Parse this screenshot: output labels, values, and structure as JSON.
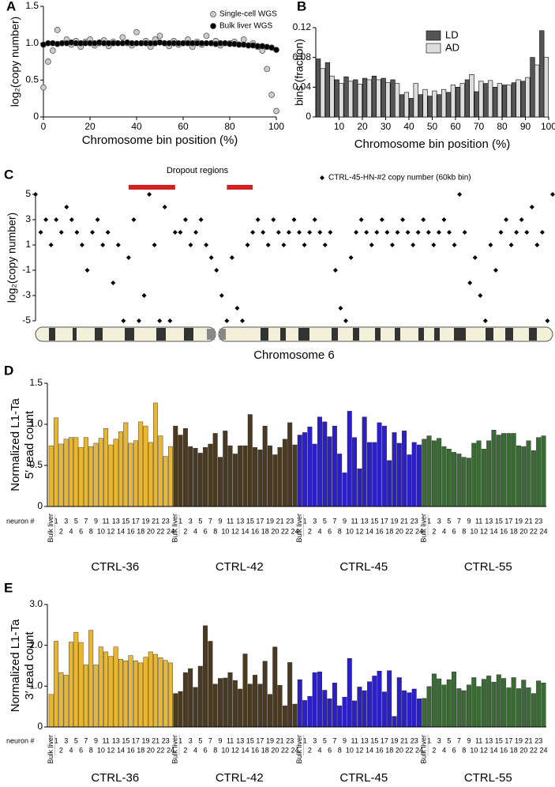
{
  "chart_data": [
    {
      "label": "A",
      "type": "scatter",
      "xlabel": "Chromosome bin position (%)",
      "ylabel": "log₂(copy number)",
      "xlim": [
        0,
        100
      ],
      "xticks": [
        0,
        20,
        40,
        60,
        80,
        100
      ],
      "ylim": [
        0,
        1.5
      ],
      "yticks": [
        0,
        0.5,
        {
          "value": 1,
          "label": "1.0"
        },
        1.5
      ],
      "legend": "upper right",
      "x": [
        0,
        2,
        4,
        6,
        8,
        10,
        12,
        14,
        16,
        18,
        20,
        22,
        24,
        26,
        28,
        30,
        32,
        34,
        36,
        38,
        40,
        42,
        44,
        46,
        48,
        50,
        52,
        54,
        56,
        58,
        60,
        62,
        64,
        66,
        68,
        70,
        72,
        74,
        76,
        78,
        80,
        82,
        84,
        86,
        88,
        90,
        92,
        94,
        96,
        98,
        100
      ],
      "series": [
        {
          "name": "Single-cell WGS",
          "color": "#cccccc",
          "marker": "circle",
          "values": [
            0.4,
            0.75,
            0.9,
            1.18,
            1.0,
            1.05,
            0.98,
            1.03,
            0.95,
            1.02,
            1.05,
            0.97,
            1.0,
            1.04,
            0.96,
            1.02,
            1.0,
            1.08,
            1.0,
            0.97,
            1.15,
            1.0,
            1.03,
            0.95,
            1.05,
            1.1,
            1.0,
            0.96,
            1.03,
            0.98,
            1.0,
            1.05,
            0.95,
            1.02,
            0.98,
            1.1,
            1.0,
            1.03,
            0.97,
            1.0,
            1.0,
            1.02,
            0.98,
            1.05,
            0.97,
            1.0,
            0.95,
            0.9,
            0.65,
            0.3,
            0.08
          ]
        },
        {
          "name": "Bulk liver WGS",
          "color": "#000000",
          "marker": "circle",
          "values": [
            0.98,
            1.0,
            1.0,
            0.99,
            1.0,
            1.0,
            1.01,
            1.0,
            1.0,
            1.0,
            1.0,
            1.0,
            1.01,
            1.0,
            1.0,
            1.0,
            1.0,
            1.0,
            1.01,
            1.0,
            1.0,
            1.0,
            1.0,
            1.0,
            1.0,
            1.01,
            1.0,
            1.0,
            1.0,
            1.0,
            1.0,
            1.0,
            1.0,
            1.0,
            1.0,
            1.0,
            1.0,
            0.99,
            1.0,
            1.0,
            0.99,
            0.99,
            0.98,
            0.98,
            0.97,
            0.97,
            0.96,
            0.96,
            0.95,
            0.94,
            0.91
          ]
        }
      ]
    },
    {
      "label": "B",
      "type": "bar",
      "xlabel": "Chromosome bin position (%)",
      "ylabel": "bins (fraction)",
      "xlim": [
        0,
        100
      ],
      "xticks": [
        10,
        20,
        30,
        40,
        50,
        60,
        70,
        80,
        90,
        100
      ],
      "ylim": [
        0,
        0.12
      ],
      "yticks": [
        0,
        0.04,
        0.08,
        0.12
      ],
      "legend": "upper center",
      "x": [
        2,
        6,
        10,
        14,
        18,
        22,
        26,
        30,
        34,
        38,
        42,
        46,
        50,
        54,
        58,
        62,
        66,
        70,
        74,
        78,
        82,
        86,
        90,
        94,
        98
      ],
      "series": [
        {
          "name": "LD",
          "color": "#555555",
          "values": [
            0.078,
            0.073,
            0.05,
            0.054,
            0.05,
            0.052,
            0.055,
            0.052,
            0.05,
            0.03,
            0.025,
            0.03,
            0.028,
            0.03,
            0.033,
            0.04,
            0.05,
            0.034,
            0.045,
            0.04,
            0.043,
            0.046,
            0.048,
            0.08,
            0.116
          ]
        },
        {
          "name": "AD",
          "color": "#dddddd",
          "values": [
            0.065,
            0.055,
            0.045,
            0.048,
            0.044,
            0.05,
            0.05,
            0.046,
            0.045,
            0.033,
            0.045,
            0.037,
            0.035,
            0.037,
            0.043,
            0.045,
            0.057,
            0.048,
            0.049,
            0.045,
            0.043,
            0.05,
            0.053,
            0.07,
            0.08
          ]
        }
      ]
    },
    {
      "label": "C",
      "type": "scatter",
      "xlabel": "Chromosome 6",
      "ylabel": "log₂(copy number)",
      "xlim": [
        0,
        100
      ],
      "ylim": [
        -5,
        5
      ],
      "yticks": [
        -5,
        -3,
        -1,
        1,
        3,
        5
      ],
      "legend": "upper center",
      "annotation": "Dropout regions",
      "annotation_color": "#d42020",
      "dropout_regions": [
        [
          18,
          27
        ],
        [
          37,
          42
        ]
      ],
      "x": [
        0,
        1,
        2,
        3,
        4,
        5,
        6,
        7,
        8,
        9,
        10,
        11,
        12,
        13,
        14,
        15,
        16,
        17,
        18,
        19,
        20,
        21,
        22,
        23,
        24,
        25,
        26,
        27,
        28,
        29,
        30,
        31,
        32,
        33,
        34,
        35,
        36,
        37,
        38,
        39,
        40,
        41,
        42,
        43,
        44,
        45,
        46,
        47,
        48,
        49,
        50,
        51,
        52,
        53,
        54,
        55,
        56,
        57,
        58,
        59,
        60,
        61,
        62,
        63,
        64,
        65,
        66,
        67,
        68,
        69,
        70,
        71,
        72,
        73,
        74,
        75,
        76,
        77,
        78,
        79,
        80,
        81,
        82,
        83,
        84,
        85,
        86,
        87,
        88,
        89,
        90,
        91,
        92,
        93,
        94,
        95,
        96,
        97,
        98,
        99,
        100
      ],
      "series": [
        {
          "name": "CTRL-45-HN-#2 copy number (60kb bin)",
          "color": "#000000",
          "marker": "diamond",
          "values": [
            5,
            2,
            3,
            1,
            3,
            2,
            4,
            3,
            2,
            1,
            -1,
            2,
            3,
            1,
            2,
            -2,
            1,
            -5,
            0,
            3,
            -5,
            -3,
            5,
            1,
            -5,
            4,
            -5,
            2,
            2,
            3,
            1,
            2,
            3,
            1,
            0,
            -1,
            -3,
            -5,
            0,
            -4,
            -5,
            1,
            2,
            3,
            2,
            1,
            3,
            2,
            1,
            2,
            3,
            2,
            1,
            2,
            3,
            2,
            1,
            2,
            -1,
            -4,
            -5,
            0,
            2,
            3,
            2,
            1,
            2,
            3,
            2,
            1,
            2,
            3,
            2,
            1,
            2,
            3,
            2,
            1,
            2,
            3,
            2,
            1,
            5,
            2,
            -2,
            0,
            -3,
            -5,
            1,
            -1,
            2,
            3,
            1,
            2,
            3,
            2,
            4,
            1,
            2,
            -5,
            5
          ]
        }
      ]
    },
    {
      "label": "D",
      "type": "bar",
      "ylabel": [
        "Normalized L1-Ta",
        "5′ read count"
      ],
      "ylim": [
        0,
        1.5
      ],
      "yticks": [
        0,
        0.5,
        {
          "value": 1,
          "label": "1.0"
        },
        1.5
      ],
      "x_prefix": "neuron #",
      "categories": [
        "Bulk liver",
        "1",
        "2",
        "3",
        "4",
        "5",
        "6",
        "7",
        "8",
        "9",
        "10",
        "11",
        "12",
        "13",
        "14",
        "15",
        "16",
        "17",
        "18",
        "19",
        "20",
        "21",
        "22",
        "23",
        "24"
      ],
      "groups": [
        {
          "name": "CTRL-36",
          "color": "#e8b630",
          "values": [
            0.74,
            1.08,
            0.76,
            0.82,
            0.84,
            0.84,
            0.72,
            0.84,
            0.73,
            0.77,
            0.83,
            0.95,
            0.75,
            0.82,
            0.91,
            1.02,
            0.77,
            0.8,
            1.03,
            0.98,
            0.78,
            1.26,
            0.86,
            0.61,
            0.73
          ]
        },
        {
          "name": "CTRL-42",
          "color": "#4a3a22",
          "values": [
            0.98,
            0.87,
            0.95,
            0.73,
            0.71,
            0.65,
            0.72,
            0.76,
            0.89,
            0.6,
            0.92,
            0.74,
            0.64,
            0.74,
            0.74,
            1.12,
            0.72,
            0.69,
            0.98,
            0.74,
            0.63,
            0.72,
            0.82,
            1.02,
            0.75
          ]
        },
        {
          "name": "CTRL-45",
          "color": "#2a1fc8",
          "values": [
            0.87,
            0.9,
            0.97,
            0.76,
            1.09,
            1.03,
            0.85,
            0.98,
            0.64,
            0.41,
            1.16,
            0.84,
            0.46,
            1.09,
            0.78,
            0.78,
            1.02,
            0.98,
            0.56,
            0.9,
            0.77,
            0.92,
            0.63,
            0.78,
            0.75
          ]
        },
        {
          "name": "CTRL-55",
          "color": "#3b6b35",
          "values": [
            0.82,
            0.86,
            0.8,
            0.83,
            0.73,
            0.7,
            0.66,
            0.64,
            0.6,
            0.59,
            0.77,
            0.8,
            0.7,
            0.8,
            0.93,
            0.87,
            0.89,
            0.89,
            0.89,
            0.74,
            0.73,
            0.8,
            0.68,
            0.84,
            0.86
          ]
        }
      ]
    },
    {
      "label": "E",
      "type": "bar",
      "ylabel": [
        "Normalized L1-Ta",
        "3′ read count"
      ],
      "ylim": [
        0,
        3
      ],
      "yticks": [
        0,
        {
          "value": 1,
          "label": "1.0"
        },
        {
          "value": 2,
          "label": "2.0"
        },
        {
          "value": 3,
          "label": "3.0"
        }
      ],
      "x_prefix": "neuron #",
      "categories": [
        "Bulk liver",
        "1",
        "2",
        "3",
        "4",
        "5",
        "6",
        "7",
        "8",
        "9",
        "10",
        "11",
        "12",
        "13",
        "14",
        "15",
        "16",
        "17",
        "18",
        "19",
        "20",
        "21",
        "22",
        "23",
        "24"
      ],
      "groups": [
        {
          "name": "CTRL-36",
          "color": "#e8b630",
          "values": [
            0.8,
            2.1,
            1.33,
            1.27,
            2.08,
            2.32,
            2.07,
            1.52,
            2.37,
            1.52,
            1.96,
            1.84,
            1.73,
            1.96,
            1.66,
            1.62,
            1.75,
            1.62,
            1.57,
            1.71,
            1.84,
            1.78,
            1.7,
            1.63,
            1.57
          ]
        },
        {
          "name": "CTRL-42",
          "color": "#4a3a22",
          "values": [
            0.82,
            0.87,
            1.33,
            1.43,
            0.97,
            1.49,
            2.48,
            2.1,
            1.05,
            1.19,
            1.2,
            1.33,
            1.14,
            0.93,
            1.79,
            1.05,
            1.27,
            1.05,
            1.61,
            0.8,
            1.96,
            1.02,
            0.52,
            1.58,
            0.56
          ]
        },
        {
          "name": "CTRL-45",
          "color": "#2a1fc8",
          "values": [
            1.16,
            0.65,
            0.75,
            1.33,
            1.35,
            0.9,
            0.69,
            1.08,
            0.52,
            0.73,
            1.68,
            0.64,
            0.98,
            0.89,
            1.11,
            1.25,
            1.37,
            0.86,
            1.38,
            0.26,
            1.21,
            0.89,
            0.84,
            0.93,
            0.69
          ]
        },
        {
          "name": "CTRL-55",
          "color": "#3b6b35",
          "values": [
            0.7,
            0.99,
            1.3,
            1.18,
            1.03,
            1.16,
            1.35,
            0.94,
            0.89,
            1.03,
            1.21,
            0.99,
            1.17,
            1.25,
            1.1,
            1.28,
            1.19,
            0.96,
            1.21,
            0.94,
            1.15,
            0.96,
            0.82,
            1.13,
            1.08
          ]
        }
      ]
    }
  ]
}
